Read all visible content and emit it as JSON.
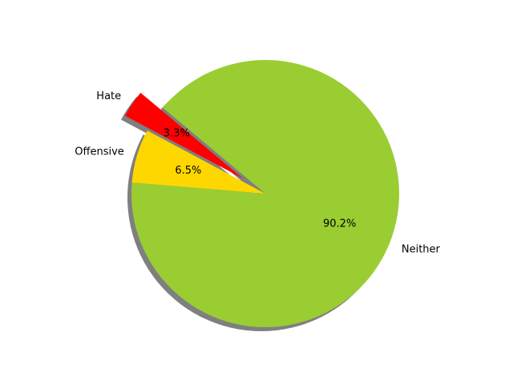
{
  "chart_data": {
    "type": "pie",
    "slices": [
      {
        "label": "Hate",
        "value": 3.3,
        "pct_label": "3.3%",
        "color": "#ff0000",
        "exploded": true
      },
      {
        "label": "Offensive",
        "value": 6.5,
        "pct_label": "6.5%",
        "color": "#ffd700",
        "exploded": false
      },
      {
        "label": "Neither",
        "value": 90.2,
        "pct_label": "90.2%",
        "color": "#9acd32",
        "exploded": false
      }
    ],
    "start_angle_deg": 140,
    "direction": "counterclockwise",
    "shadow": true
  }
}
